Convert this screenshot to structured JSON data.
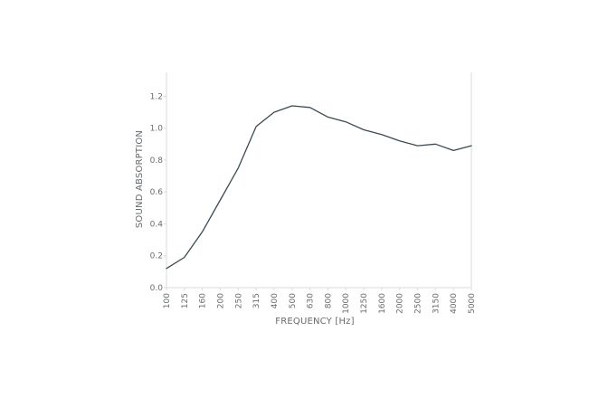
{
  "chart_data": {
    "type": "line",
    "xlabel": "FREQUENCY [Hz]",
    "ylabel": "SOUND ABSORPTION",
    "ylim": [
      0,
      1.35
    ],
    "grid": false,
    "line_color": "#3b4a52",
    "axis_color": "#d9dcde",
    "yticks": [
      "0.0",
      "0.2",
      "0.4",
      "0.6",
      "0.8",
      "1.0",
      "1.2"
    ],
    "categories": [
      "100",
      "125",
      "160",
      "200",
      "250",
      "315",
      "400",
      "500",
      "630",
      "800",
      "1000",
      "1250",
      "1600",
      "2000",
      "2500",
      "3150",
      "4000",
      "5000"
    ],
    "series": [
      {
        "values": [
          0.12,
          0.19,
          0.35,
          0.55,
          0.75,
          1.01,
          1.1,
          1.14,
          1.13,
          1.07,
          1.04,
          0.99,
          0.96,
          0.92,
          0.89,
          0.9,
          0.86,
          0.89
        ]
      }
    ]
  }
}
